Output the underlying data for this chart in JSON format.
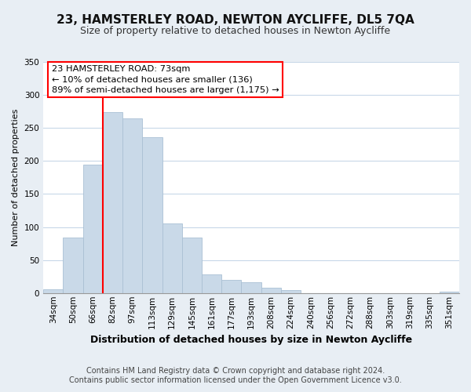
{
  "title": "23, HAMSTERLEY ROAD, NEWTON AYCLIFFE, DL5 7QA",
  "subtitle": "Size of property relative to detached houses in Newton Aycliffe",
  "xlabel": "Distribution of detached houses by size in Newton Aycliffe",
  "ylabel": "Number of detached properties",
  "bar_color": "#c9d9e8",
  "bar_edge_color": "#aac0d4",
  "categories": [
    "34sqm",
    "50sqm",
    "66sqm",
    "82sqm",
    "97sqm",
    "113sqm",
    "129sqm",
    "145sqm",
    "161sqm",
    "177sqm",
    "193sqm",
    "208sqm",
    "224sqm",
    "240sqm",
    "256sqm",
    "272sqm",
    "288sqm",
    "303sqm",
    "319sqm",
    "335sqm",
    "351sqm"
  ],
  "values": [
    6,
    84,
    194,
    274,
    265,
    236,
    105,
    84,
    28,
    20,
    16,
    8,
    5,
    0,
    0,
    0,
    0,
    0,
    0,
    0,
    2
  ],
  "ylim": [
    0,
    350
  ],
  "yticks": [
    0,
    50,
    100,
    150,
    200,
    250,
    300,
    350
  ],
  "red_line_idx": 2.5,
  "annotation_title": "23 HAMSTERLEY ROAD: 73sqm",
  "annotation_line1": "← 10% of detached houses are smaller (136)",
  "annotation_line2": "89% of semi-detached houses are larger (1,175) →",
  "footer1": "Contains HM Land Registry data © Crown copyright and database right 2024.",
  "footer2": "Contains public sector information licensed under the Open Government Licence v3.0.",
  "background_color": "#e8eef4",
  "plot_bg_color": "#ffffff",
  "grid_color": "#c8d8e8",
  "title_fontsize": 11,
  "subtitle_fontsize": 9,
  "ylabel_fontsize": 8,
  "xlabel_fontsize": 9,
  "tick_fontsize": 7.5,
  "footer_fontsize": 7
}
